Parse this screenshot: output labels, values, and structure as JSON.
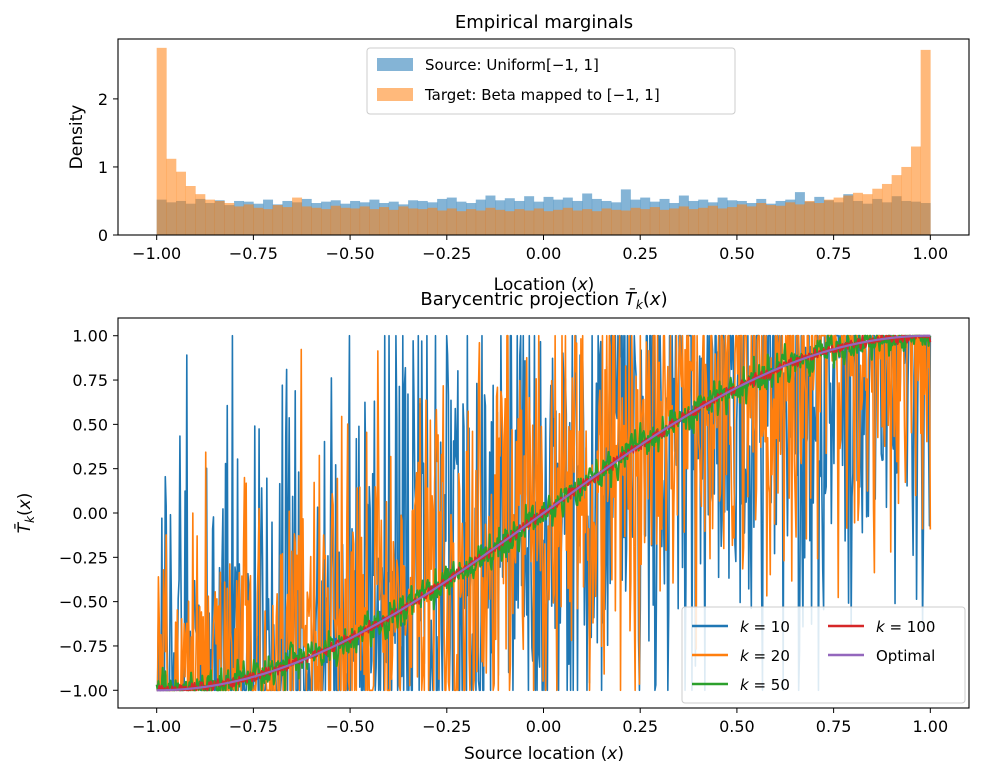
{
  "colors": {
    "source": "#1f77b4",
    "target": "#ff7f0e",
    "k10": "#1f77b4",
    "k20": "#ff7f0e",
    "k50": "#2ca02c",
    "k100": "#d62728",
    "optimal": "#9467bd"
  },
  "chart_data": [
    {
      "type": "bar",
      "title": "Empirical marginals",
      "xlabel": "Location (x)",
      "ylabel": "Density",
      "xlim": [
        -1.1,
        1.1
      ],
      "ylim": [
        0,
        2.88
      ],
      "xticks": [
        -1.0,
        -0.75,
        -0.5,
        -0.25,
        0.0,
        0.25,
        0.5,
        0.75,
        1.0
      ],
      "xtick_labels": [
        "−1.00",
        "−0.75",
        "−0.50",
        "−0.25",
        "0.00",
        "0.25",
        "0.50",
        "0.75",
        "1.00"
      ],
      "yticks": [
        0,
        1,
        2
      ],
      "ytick_labels": [
        "0",
        "1",
        "2"
      ],
      "bin_range": [
        -1.0,
        1.0
      ],
      "series": [
        {
          "name": "Source: Uniform[−1, 1]",
          "color_key": "source",
          "opacity": 0.55,
          "values": [
            0.52,
            0.48,
            0.5,
            0.46,
            0.53,
            0.47,
            0.51,
            0.44,
            0.5,
            0.49,
            0.46,
            0.52,
            0.45,
            0.5,
            0.48,
            0.53,
            0.47,
            0.49,
            0.51,
            0.46,
            0.5,
            0.48,
            0.52,
            0.47,
            0.49,
            0.45,
            0.51,
            0.5,
            0.48,
            0.53,
            0.55,
            0.49,
            0.47,
            0.52,
            0.58,
            0.51,
            0.54,
            0.5,
            0.57,
            0.49,
            0.56,
            0.52,
            0.55,
            0.5,
            0.61,
            0.53,
            0.5,
            0.48,
            0.67,
            0.52,
            0.55,
            0.49,
            0.53,
            0.47,
            0.58,
            0.5,
            0.52,
            0.48,
            0.55,
            0.51,
            0.5,
            0.47,
            0.53,
            0.46,
            0.5,
            0.52,
            0.63,
            0.49,
            0.56,
            0.51,
            0.48,
            0.6,
            0.5,
            0.46,
            0.53,
            0.48,
            0.57,
            0.5,
            0.49,
            0.47
          ]
        },
        {
          "name": "Target: Beta mapped to [−1, 1]",
          "color_key": "target",
          "opacity": 0.55,
          "values": [
            2.75,
            1.12,
            0.93,
            0.72,
            0.6,
            0.52,
            0.5,
            0.47,
            0.42,
            0.45,
            0.4,
            0.38,
            0.44,
            0.41,
            0.55,
            0.42,
            0.4,
            0.38,
            0.43,
            0.4,
            0.39,
            0.42,
            0.38,
            0.41,
            0.37,
            0.42,
            0.39,
            0.38,
            0.4,
            0.36,
            0.39,
            0.35,
            0.38,
            0.36,
            0.4,
            0.37,
            0.35,
            0.38,
            0.36,
            0.39,
            0.35,
            0.37,
            0.4,
            0.36,
            0.38,
            0.35,
            0.39,
            0.37,
            0.36,
            0.4,
            0.38,
            0.41,
            0.37,
            0.39,
            0.42,
            0.38,
            0.4,
            0.43,
            0.39,
            0.41,
            0.45,
            0.42,
            0.47,
            0.44,
            0.43,
            0.48,
            0.45,
            0.5,
            0.47,
            0.52,
            0.55,
            0.58,
            0.62,
            0.6,
            0.68,
            0.75,
            0.88,
            1.0,
            1.3,
            2.72
          ]
        }
      ],
      "legend": {
        "location": "top-center"
      }
    },
    {
      "type": "line",
      "title": "Barycentric projection T̄",
      "title_suffix": "(x)",
      "title_subscript": "k",
      "xlabel": "Source location (x)",
      "ylabel": "T̄",
      "ylabel_subscript": "k",
      "ylabel_suffix": "(x)",
      "xlim": [
        -1.1,
        1.1
      ],
      "ylim": [
        -1.1,
        1.1
      ],
      "xticks": [
        -1.0,
        -0.75,
        -0.5,
        -0.25,
        0.0,
        0.25,
        0.5,
        0.75,
        1.0
      ],
      "xtick_labels": [
        "−1.00",
        "−0.75",
        "−0.50",
        "−0.25",
        "0.00",
        "0.25",
        "0.50",
        "0.75",
        "1.00"
      ],
      "yticks": [
        1.0,
        0.75,
        0.5,
        0.25,
        0.0,
        -0.25,
        -0.5,
        -0.75,
        -1.0
      ],
      "ytick_labels": [
        "1.00",
        "0.75",
        "0.50",
        "0.25",
        "0.00",
        "−0.25",
        "−0.50",
        "−0.75",
        "−1.00"
      ],
      "x_range": [
        -1.0,
        1.0
      ],
      "optimal_function": "sin(pi*x/2)",
      "series": [
        {
          "name": "k = 10",
          "color_key": "k10",
          "noise": 0.85,
          "n_points": 900,
          "seed": 11,
          "line_width": 1.6
        },
        {
          "name": "k = 20",
          "color_key": "k20",
          "noise": 0.6,
          "n_points": 900,
          "seed": 23,
          "line_width": 1.6
        },
        {
          "name": "k = 50",
          "color_key": "k50",
          "noise": 0.05,
          "n_points": 900,
          "seed": 37,
          "line_width": 2.0
        },
        {
          "name": "k = 100",
          "color_key": "k100",
          "noise": 0.015,
          "n_points": 900,
          "seed": 41,
          "line_width": 1.8
        },
        {
          "name": "Optimal",
          "color_key": "optimal",
          "noise": 0,
          "n_points": 400,
          "seed": 0,
          "line_width": 2.2
        }
      ],
      "legend": {
        "location": "lower-right",
        "columns": 2,
        "entries": [
          {
            "prefix": "k",
            "rest": " = 10",
            "color_key": "k10"
          },
          {
            "prefix": "k",
            "rest": " = 100",
            "color_key": "k100"
          },
          {
            "prefix": "k",
            "rest": " = 20",
            "color_key": "k20"
          },
          {
            "prefix": "",
            "rest": "Optimal",
            "color_key": "optimal"
          },
          {
            "prefix": "k",
            "rest": " = 50",
            "color_key": "k50"
          }
        ]
      }
    }
  ]
}
